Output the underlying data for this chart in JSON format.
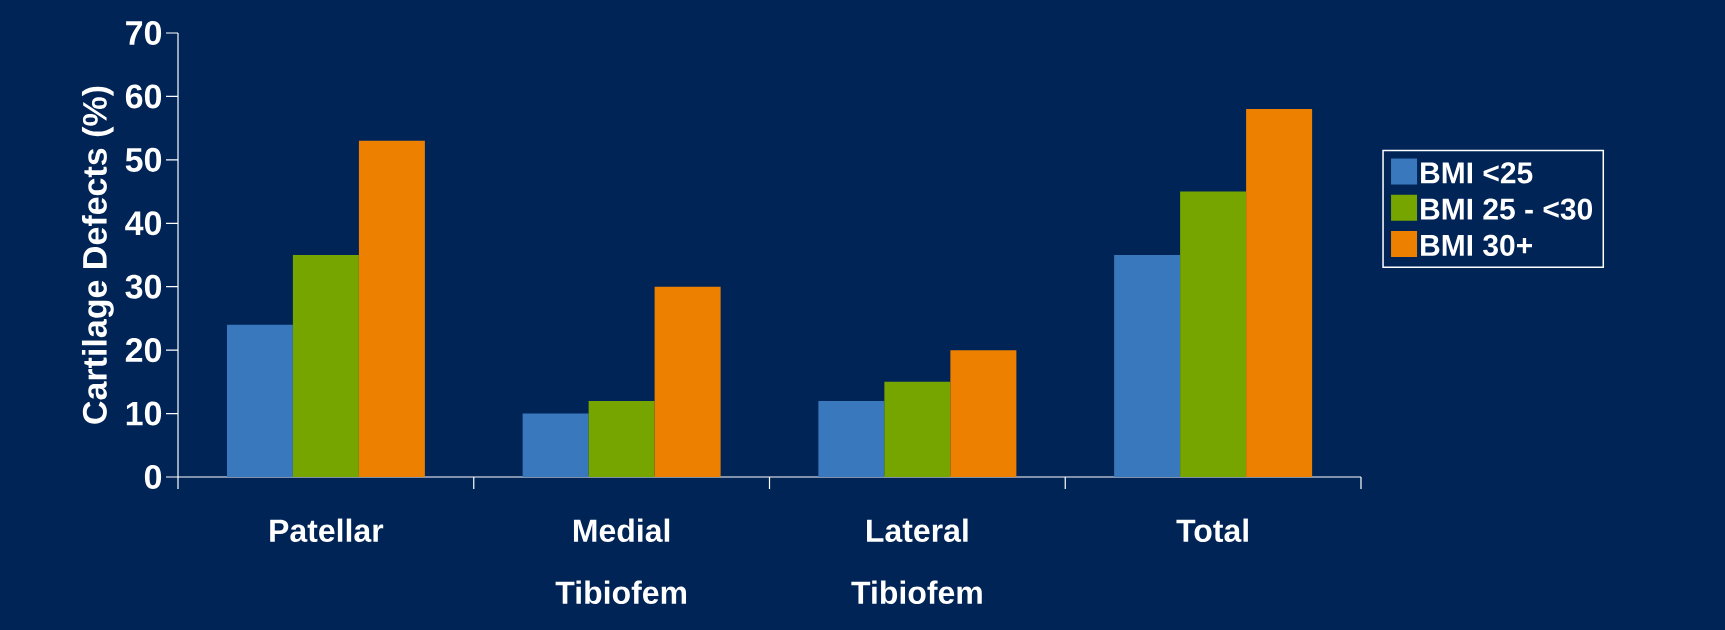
{
  "chart_data": {
    "type": "bar",
    "ylabel": "Cartilage Defects (%)",
    "categories": [
      "Patellar",
      "Medial Tibiofem",
      "Lateral Tibiofem",
      "Total"
    ],
    "series": [
      {
        "name": "BMI <25",
        "color": "#3a78bd",
        "values": [
          24,
          10,
          12,
          35
        ]
      },
      {
        "name": "BMI 25 - <30",
        "color": "#76a500",
        "values": [
          35,
          12,
          15,
          45
        ]
      },
      {
        "name": "BMI 30+",
        "color": "#ee8000",
        "values": [
          53,
          30,
          20,
          58
        ]
      }
    ],
    "ylim": [
      0,
      70
    ],
    "yticks": [
      0,
      10,
      20,
      30,
      40,
      50,
      60,
      70
    ],
    "legend": "right"
  }
}
